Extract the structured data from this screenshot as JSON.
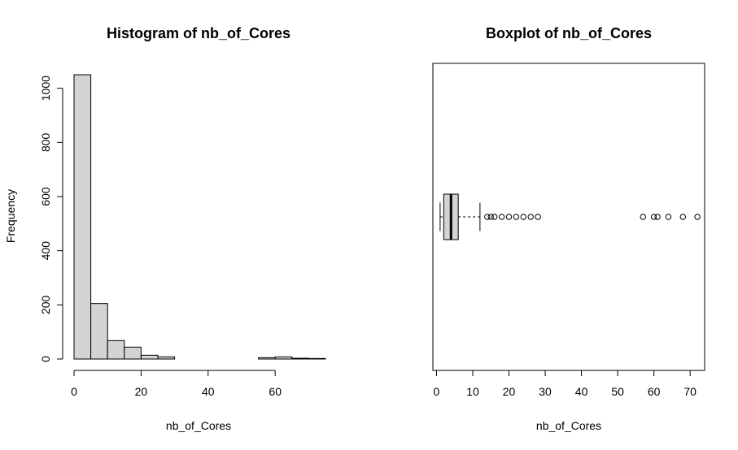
{
  "chart_data": [
    {
      "type": "bar",
      "title": "Histogram of nb_of_Cores",
      "xlabel": "nb_of_Cores",
      "ylabel": "Frequency",
      "bin_edges": [
        0,
        5,
        10,
        15,
        20,
        25,
        30,
        35,
        40,
        45,
        50,
        55,
        60,
        65,
        70,
        75
      ],
      "values": [
        1050,
        205,
        68,
        44,
        14,
        8,
        0,
        0,
        0,
        0,
        0,
        5,
        8,
        3,
        2
      ],
      "xlim": [
        0,
        75
      ],
      "ylim": [
        0,
        1050
      ],
      "xticks": [
        0,
        20,
        40,
        60
      ],
      "yticks": [
        0,
        200,
        400,
        600,
        800,
        1000
      ],
      "grid": false
    },
    {
      "type": "boxplot",
      "title": "Boxplot of nb_of_Cores",
      "xlabel": "nb_of_Cores",
      "orientation": "horizontal",
      "stats": {
        "whisker_low": 1,
        "q1": 2,
        "median": 4,
        "q3": 6,
        "whisker_high": 12
      },
      "outliers": [
        14,
        15,
        16,
        18,
        20,
        22,
        24,
        26,
        28,
        57,
        60,
        61,
        64,
        68,
        72
      ],
      "xlim": [
        -1,
        74
      ],
      "xticks": [
        0,
        10,
        20,
        30,
        40,
        50,
        60,
        70
      ],
      "grid": false
    }
  ]
}
